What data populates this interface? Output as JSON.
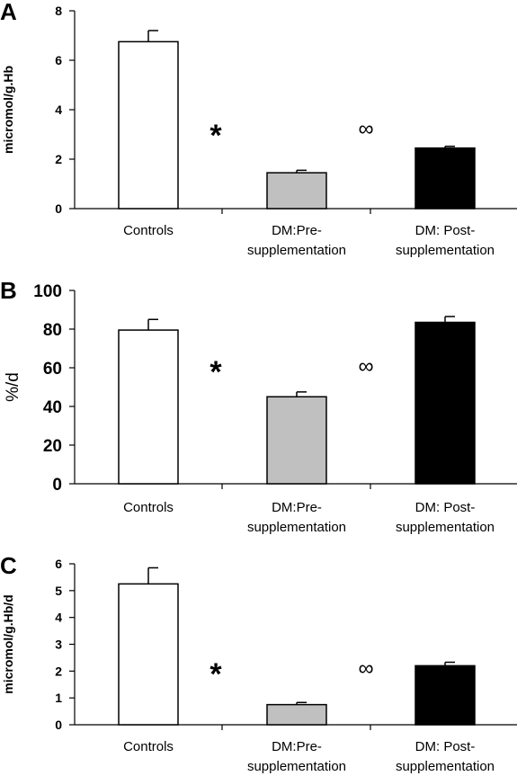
{
  "chart_data": [
    {
      "type": "bar",
      "panel_label": "A",
      "ylabel": "micromol/g.Hb",
      "ylim": [
        0,
        8
      ],
      "yticks": [
        0,
        2,
        4,
        6,
        8
      ],
      "categories": [
        "Controls",
        "DM:Pre-\nsupplementation",
        "DM: Post-\nsupplementation"
      ],
      "values": [
        6.75,
        1.45,
        2.45
      ],
      "errors": [
        0.45,
        0.1,
        0.07
      ],
      "bar_colors": [
        "#ffffff",
        "#c0c0c0",
        "#000000"
      ],
      "annotations": [
        "*",
        "∞"
      ],
      "grid": false
    },
    {
      "type": "bar",
      "panel_label": "B",
      "ylabel": "%/d",
      "ylim": [
        0,
        100
      ],
      "yticks": [
        0,
        20,
        40,
        60,
        80,
        100
      ],
      "categories": [
        "Controls",
        "DM:Pre-\nsupplementation",
        "DM: Post-\nsupplementation"
      ],
      "values": [
        79.5,
        45,
        83.5
      ],
      "errors": [
        5.5,
        2.5,
        3
      ],
      "bar_colors": [
        "#ffffff",
        "#c0c0c0",
        "#000000"
      ],
      "annotations": [
        "*",
        "∞"
      ],
      "grid": false
    },
    {
      "type": "bar",
      "panel_label": "C",
      "ylabel": "micromol/g.Hb/d",
      "ylim": [
        0,
        6
      ],
      "yticks": [
        0,
        1,
        2,
        3,
        4,
        5,
        6
      ],
      "categories": [
        "Controls",
        "DM:Pre-\nsupplementation",
        "DM: Post-\nsupplementation"
      ],
      "values": [
        5.25,
        0.75,
        2.2
      ],
      "errors": [
        0.6,
        0.08,
        0.13
      ],
      "bar_colors": [
        "#ffffff",
        "#c0c0c0",
        "#000000"
      ],
      "annotations": [
        "*",
        "∞"
      ],
      "grid": false
    }
  ]
}
